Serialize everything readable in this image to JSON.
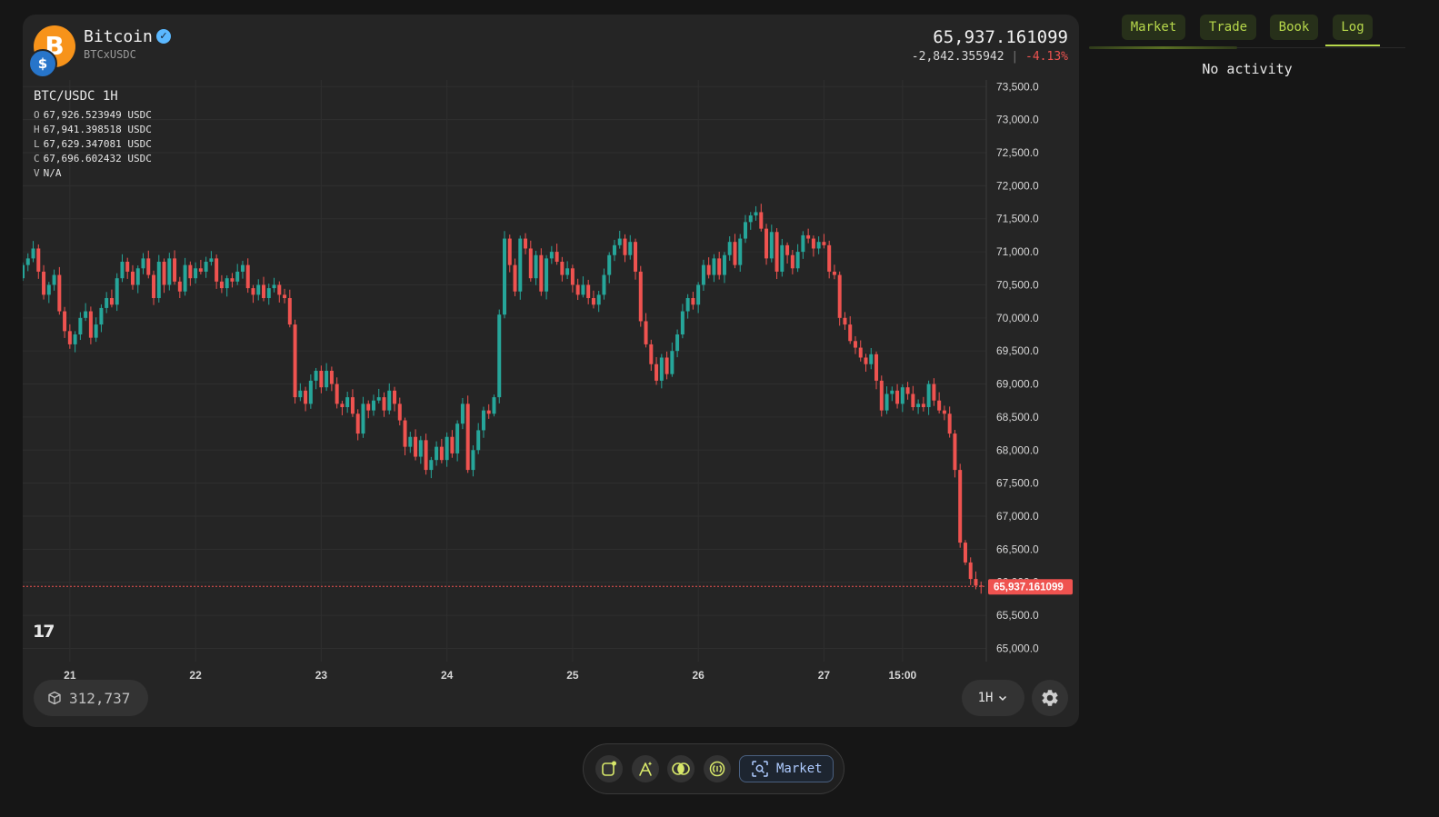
{
  "asset": {
    "name": "Bitcoin",
    "pair": "BTCxUSDC",
    "icon": "bitcoin-icon",
    "quote_icon": "usdc-icon",
    "price": "65,937.161099",
    "change_abs": "-2,842.355942",
    "change_sep": "|",
    "change_pct": "-4.13%",
    "coin_symbol": "B",
    "quote_symbol": "$",
    "verified_mark": "✓"
  },
  "legend": {
    "title": "BTC/USDC 1H",
    "rows": [
      {
        "k": "O",
        "v": "67,926.523949 USDC"
      },
      {
        "k": "H",
        "v": "67,941.398518 USDC"
      },
      {
        "k": "L",
        "v": "67,629.347081 USDC"
      },
      {
        "k": "C",
        "v": "67,696.602432 USDC"
      },
      {
        "k": "V",
        "v": "N/A"
      }
    ]
  },
  "tv_logo": "17",
  "bottom_left": {
    "blocks": "312,737"
  },
  "timeframe": {
    "label": "1H"
  },
  "tabs": [
    {
      "label": "Market"
    },
    {
      "label": "Trade"
    },
    {
      "label": "Book"
    },
    {
      "label": "Log"
    }
  ],
  "activity": {
    "empty_text": "No activity"
  },
  "toolbar": {
    "market_label": "Market"
  },
  "colors": {
    "up": "#26a69a",
    "down": "#ef5350",
    "accent": "#b7d84b",
    "bg": "#252525"
  },
  "chart_data": {
    "type": "candlestick",
    "title": "BTC/USDC 1H",
    "y_range": [
      64800,
      73600
    ],
    "y_ticks": [
      73500,
      73000,
      72500,
      72000,
      71500,
      71000,
      70500,
      70000,
      69500,
      69000,
      68500,
      68000,
      67500,
      67000,
      66500,
      66000,
      65500,
      65000
    ],
    "y_tick_labels": [
      "73,500.0",
      "73,000.0",
      "72,500.0",
      "72,000.0",
      "71,500.0",
      "71,000.0",
      "70,500.0",
      "70,000.0",
      "69,500.0",
      "69,000.0",
      "68,500.0",
      "68,000.0",
      "67,500.0",
      "67,000.0",
      "66,500.0",
      "66,000.0",
      "65,500.0",
      "65,000.0"
    ],
    "x_range_hours": [
      -9,
      175
    ],
    "x_ticks": [
      {
        "h": 0,
        "label": "21"
      },
      {
        "h": 24,
        "label": "22"
      },
      {
        "h": 48,
        "label": "23"
      },
      {
        "h": 72,
        "label": "24"
      },
      {
        "h": 96,
        "label": "25"
      },
      {
        "h": 120,
        "label": "26"
      },
      {
        "h": 144,
        "label": "27"
      },
      {
        "h": 159,
        "label": "15:00"
      }
    ],
    "last_price": 65937.161099,
    "last_price_label": "65,937.161099",
    "closes": [
      70800,
      70900,
      71050,
      70700,
      70350,
      70500,
      70650,
      70100,
      69800,
      69600,
      69750,
      70000,
      70100,
      69700,
      69900,
      70150,
      70300,
      70200,
      70600,
      70850,
      70700,
      70500,
      70750,
      70900,
      70650,
      70300,
      70850,
      70500,
      70900,
      70550,
      70400,
      70800,
      70600,
      70750,
      70700,
      70850,
      70900,
      70550,
      70450,
      70600,
      70550,
      70700,
      70800,
      70450,
      70350,
      70500,
      70300,
      70450,
      70500,
      70350,
      70300,
      69900,
      68800,
      68900,
      68700,
      69050,
      69200,
      68950,
      69200,
      69000,
      68700,
      68650,
      68800,
      68550,
      68250,
      68700,
      68600,
      68750,
      68800,
      68600,
      68900,
      68700,
      68450,
      68050,
      68200,
      67900,
      68150,
      67700,
      67850,
      68050,
      67850,
      68200,
      67950,
      68400,
      68700,
      67700,
      68000,
      68300,
      68600,
      68550,
      68800,
      70050,
      71200,
      70800,
      70400,
      71200,
      71050,
      70600,
      70950,
      70400,
      70900,
      71000,
      70850,
      70650,
      70750,
      70500,
      70350,
      70500,
      70300,
      70200,
      70350,
      70650,
      70950,
      71100,
      71200,
      70950,
      71150,
      70700,
      69950,
      69600,
      69300,
      69050,
      69400,
      69150,
      69500,
      69750,
      70100,
      70300,
      70200,
      70500,
      70800,
      70650,
      70900,
      70650,
      70950,
      71150,
      70800,
      71200,
      71450,
      71550,
      71600,
      71350,
      70900,
      71300,
      70700,
      71100,
      70950,
      70750,
      71000,
      71250,
      71200,
      71050,
      71150,
      71100,
      70700,
      70650,
      70000,
      69900,
      69650,
      69550,
      69400,
      69300,
      69450,
      69050,
      68600,
      68850,
      68900,
      68700,
      68950,
      68850,
      68650,
      68700,
      68650,
      69000,
      68750,
      68600,
      68550,
      68250,
      67700,
      66600,
      66300,
      66050,
      65950,
      65937
    ]
  }
}
